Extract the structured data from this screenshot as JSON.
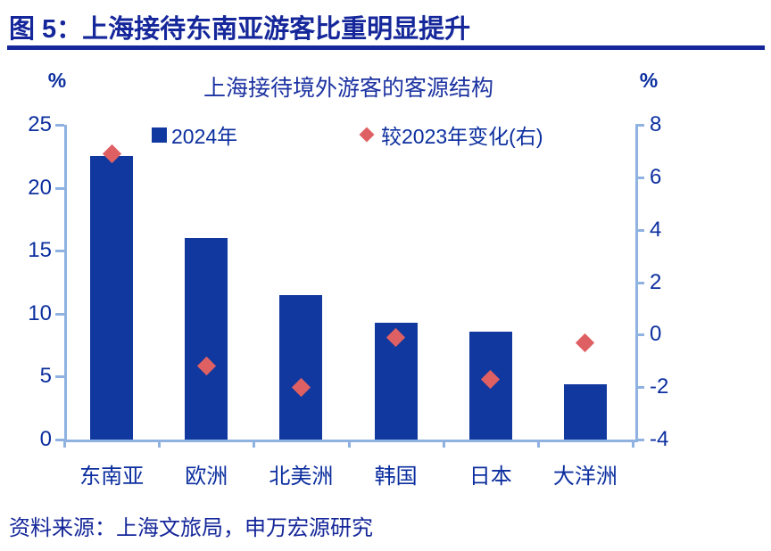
{
  "page": {
    "figure_label": "图 5：上海接待东南亚游客比重明显提升",
    "source": "资料来源：上海文旅局，申万宏源研究"
  },
  "chart_data": {
    "type": "bar",
    "title": "上海接待境外游客的客源结构",
    "categories": [
      "东南亚",
      "欧洲",
      "北美洲",
      "韩国",
      "日本",
      "大洋洲"
    ],
    "series": [
      {
        "name": "2024年",
        "type": "bar",
        "axis": "left",
        "marker": "square",
        "color": "#10389E",
        "values": [
          22.5,
          16.0,
          11.5,
          9.3,
          8.6,
          4.4
        ]
      },
      {
        "name": "较2023年变化(右)",
        "type": "scatter",
        "axis": "right",
        "marker": "diamond",
        "color": "#DF6063",
        "values": [
          6.9,
          -1.2,
          -2.0,
          -0.1,
          -1.7,
          -0.3
        ]
      }
    ],
    "left_axis": {
      "unit": "%",
      "min": 0,
      "max": 25,
      "ticks": [
        0,
        5,
        10,
        15,
        20,
        25
      ]
    },
    "right_axis": {
      "unit": "%",
      "min": -4,
      "max": 8,
      "ticks": [
        -4,
        -2,
        0,
        2,
        4,
        6,
        8
      ]
    },
    "legend_position": "top",
    "grid": false
  },
  "colors": {
    "bar": "#10389E",
    "diamond": "#DF6063",
    "axis_line": "#8FB2E1",
    "axis_text": "#0C2F9F",
    "heading_text": "#15279A"
  }
}
